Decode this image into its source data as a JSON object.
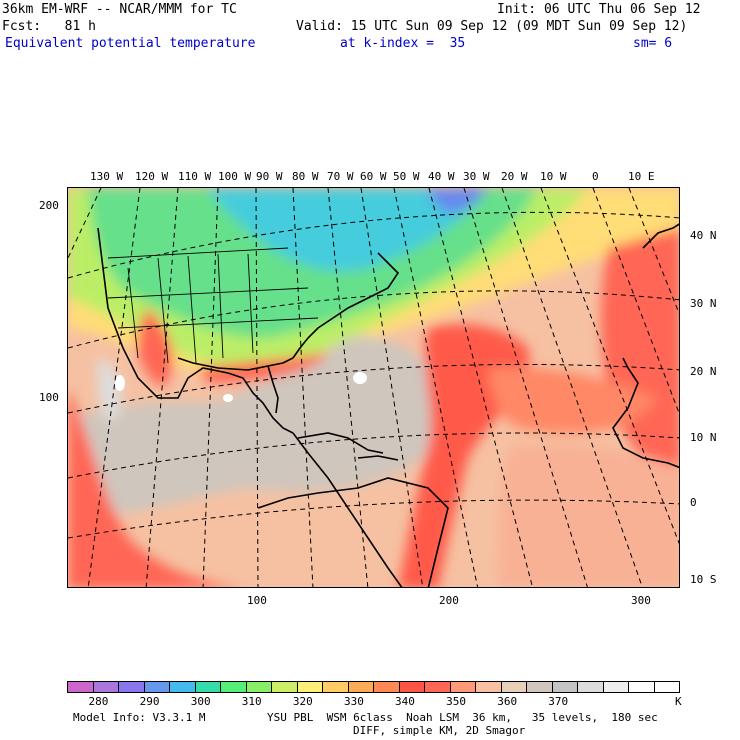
{
  "header": {
    "model": "36km EM-WRF -- NCAR/MMM for TC",
    "init": "Init: 06 UTC Thu 06 Sep 12",
    "fcst": "Fcst:   81 h",
    "valid": "Valid: 15 UTC Sun 09 Sep 12 (09 MDT Sun 09 Sep 12)",
    "field": "Equivalent potential temperature",
    "level": "at k-index =  35",
    "smooth": "sm= 6"
  },
  "lon_labels": [
    "130 W",
    "120 W",
    "110 W",
    "100 W",
    "90 W",
    "80 W",
    "70 W",
    "60 W",
    "50 W",
    "40 W",
    "30 W",
    "20 W",
    "10 W",
    "0",
    "10 E"
  ],
  "lat_labels": [
    "40 N",
    "30 N",
    "20 N",
    "10 N",
    "0",
    "10 S"
  ],
  "left_axis": [
    "200",
    "100"
  ],
  "bottom_axis": [
    "100",
    "200",
    "300"
  ],
  "colorbar": {
    "colors": [
      "#cc66cc",
      "#aa77dd",
      "#8877ee",
      "#6699ee",
      "#44bbee",
      "#33ddaa",
      "#55ee77",
      "#88ee66",
      "#ccee66",
      "#ffee77",
      "#ffcc66",
      "#ffaa55",
      "#ff8855",
      "#ff5544",
      "#ff6655",
      "#ff9977",
      "#f8bfa0",
      "#e8d0b8",
      "#cfc6bd",
      "#c4c4c4",
      "#dcdcdc",
      "#eeeeee",
      "#ffffff",
      "#ffffff"
    ],
    "labels": [
      "280",
      "290",
      "300",
      "310",
      "320",
      "330",
      "340",
      "350",
      "360",
      "370"
    ],
    "unit": "K"
  },
  "footer": {
    "info": "Model Info: V3.3.1 M",
    "physics": "YSU PBL  WSM 6class  Noah LSM  36 km,   35 levels,  180 sec",
    "diff": "DIFF, simple KM, 2D Smagor"
  }
}
